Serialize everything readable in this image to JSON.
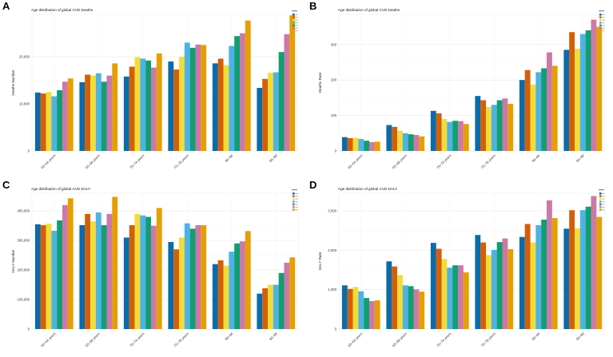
{
  "colors": [
    "#0b6ba8",
    "#d35f0a",
    "#f1dd38",
    "#4fb2e3",
    "#119e73",
    "#cc79a7",
    "#e69f00"
  ],
  "panels": [
    {
      "letter": "A"
    },
    {
      "letter": "B"
    },
    {
      "letter": "C"
    },
    {
      "letter": "D"
    }
  ],
  "chart_data": [
    {
      "type": "bar",
      "title": "Age distribution of global CVD Deaths",
      "ylabel": "Deaths Number",
      "categories": [
        "60–64 years",
        "65–69 years",
        "70–74 years",
        "75–79 years",
        "80–84",
        "85–89"
      ],
      "yticks": [
        0,
        10000,
        20000
      ],
      "ytick_labels": [
        "0",
        "10,000",
        "20,000"
      ],
      "ylim": [
        0,
        29000
      ],
      "series": [
        {
          "values": [
            12400,
            14600,
            15800,
            19000,
            18600,
            13400
          ]
        },
        {
          "values": [
            12200,
            16200,
            17900,
            17300,
            19600,
            15300
          ]
        },
        {
          "values": [
            12500,
            16000,
            19900,
            20000,
            18200,
            16600
          ]
        },
        {
          "values": [
            11600,
            16500,
            19600,
            23000,
            22300,
            16700
          ]
        },
        {
          "values": [
            12900,
            14700,
            19200,
            21900,
            24400,
            21000
          ]
        },
        {
          "values": [
            14700,
            16000,
            17700,
            22600,
            25000,
            24800
          ]
        },
        {
          "values": [
            15400,
            18600,
            20700,
            22500,
            27700,
            28800
          ]
        }
      ]
    },
    {
      "type": "bar",
      "title": "Age distribution of global CVD Deaths",
      "ylabel": "Deaths Rate",
      "categories": [
        "60–64 years",
        "65–69 years",
        "70–74 years",
        "75–79 years",
        "80–84",
        "85–89"
      ],
      "yticks": [
        0,
        100,
        200,
        300
      ],
      "ytick_labels": [
        "0",
        "100",
        "200",
        "300"
      ],
      "ylim": [
        0,
        385
      ],
      "series": [
        {
          "values": [
            39,
            73,
            113,
            155,
            200,
            285
          ]
        },
        {
          "values": [
            36,
            68,
            106,
            143,
            228,
            335
          ]
        },
        {
          "values": [
            37,
            57,
            90,
            124,
            187,
            288
          ]
        },
        {
          "values": [
            34,
            50,
            82,
            130,
            222,
            330
          ]
        },
        {
          "values": [
            29,
            47,
            85,
            143,
            233,
            340
          ]
        },
        {
          "values": [
            25,
            45,
            84,
            148,
            278,
            370
          ]
        },
        {
          "values": [
            26,
            41,
            76,
            133,
            240,
            350
          ]
        }
      ]
    },
    {
      "type": "bar",
      "title": "Age distribution of global CVD DALY",
      "ylabel": "DALY Number",
      "categories": [
        "60–64 years",
        "65–69 years",
        "70–74 years",
        "75–79 years",
        "80–84",
        "85–89"
      ],
      "yticks": [
        0,
        100000,
        200000,
        300000,
        400000
      ],
      "ytick_labels": [
        "0",
        "100,000",
        "200,000",
        "300,000",
        "400,000"
      ],
      "ylim": [
        0,
        460000
      ],
      "series": [
        {
          "values": [
            355000,
            352000,
            310000,
            295000,
            220000,
            120000
          ]
        },
        {
          "values": [
            352000,
            390000,
            352000,
            270000,
            233000,
            138000
          ]
        },
        {
          "values": [
            357000,
            365000,
            390000,
            310000,
            215000,
            150000
          ]
        },
        {
          "values": [
            333000,
            395000,
            385000,
            358000,
            262000,
            150000
          ]
        },
        {
          "values": [
            368000,
            352000,
            380000,
            340000,
            290000,
            190000
          ]
        },
        {
          "values": [
            420000,
            390000,
            350000,
            352000,
            297000,
            225000
          ]
        },
        {
          "values": [
            443000,
            448000,
            410000,
            352000,
            332000,
            243000
          ]
        }
      ]
    },
    {
      "type": "bar",
      "title": "Age distribution of global CVD DALY",
      "ylabel": "DALY Rate",
      "categories": [
        "60–64 years",
        "65–69 years",
        "70–74 years",
        "75–79 years",
        "80–84",
        "85–89"
      ],
      "yticks": [
        0,
        1000,
        2000,
        3000
      ],
      "ytick_labels": [
        "0",
        "1,000",
        "2,000",
        "3,000"
      ],
      "ylim": [
        0,
        3450
      ],
      "series": [
        {
          "values": [
            1110,
            1720,
            2190,
            2390,
            2340,
            2550
          ]
        },
        {
          "values": [
            1020,
            1590,
            2040,
            2200,
            2670,
            3020
          ]
        },
        {
          "values": [
            1070,
            1370,
            1780,
            1880,
            2200,
            2560
          ]
        },
        {
          "values": [
            960,
            1110,
            1560,
            2010,
            2640,
            3020
          ]
        },
        {
          "values": [
            790,
            1090,
            1620,
            2210,
            2780,
            3110
          ]
        },
        {
          "values": [
            710,
            1010,
            1620,
            2300,
            3270,
            3380
          ]
        },
        {
          "values": [
            730,
            950,
            1440,
            2030,
            2820,
            2850
          ]
        }
      ]
    }
  ]
}
